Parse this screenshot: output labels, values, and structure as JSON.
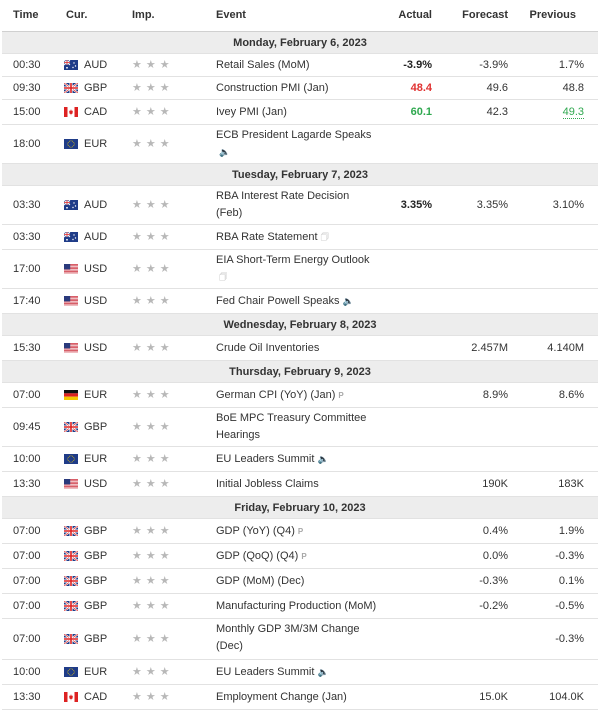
{
  "header": {
    "time": "Time",
    "cur": "Cur.",
    "imp": "Imp.",
    "event": "Event",
    "actual": "Actual",
    "forecast": "Forecast",
    "previous": "Previous"
  },
  "days": [
    {
      "label": "Monday, February 6, 2023"
    },
    {
      "label": "Tuesday, February 7, 2023"
    },
    {
      "label": "Wednesday, February 8, 2023"
    },
    {
      "label": "Thursday, February 9, 2023"
    },
    {
      "label": "Friday, February 10, 2023"
    }
  ],
  "events": [
    {
      "time": "00:30",
      "cur": "AUD",
      "flag": "au",
      "event": "Retail Sales (MoM)",
      "actual": "-3.9%",
      "actual_color": "#222222",
      "forecast": "-3.9%",
      "previous": "1.7%",
      "icon": ""
    },
    {
      "time": "09:30",
      "cur": "GBP",
      "flag": "gb",
      "event": "Construction PMI (Jan)",
      "actual": "48.4",
      "actual_color": "#e03030",
      "forecast": "49.6",
      "previous": "48.8",
      "icon": ""
    },
    {
      "time": "15:00",
      "cur": "CAD",
      "flag": "ca",
      "event": "Ivey PMI (Jan)",
      "actual": "60.1",
      "actual_color": "#2fa84f",
      "forecast": "42.3",
      "previous": "49.3",
      "previous_color": "#2fa84f",
      "icon": ""
    },
    {
      "time": "18:00",
      "cur": "EUR",
      "flag": "eu",
      "event": "ECB President Lagarde Speaks",
      "actual": "",
      "forecast": "",
      "previous": "",
      "icon": "speaker"
    },
    {
      "time": "03:30",
      "cur": "AUD",
      "flag": "au",
      "event": "RBA Interest Rate Decision (Feb)",
      "actual": "3.35%",
      "actual_color": "#222222",
      "forecast": "3.35%",
      "previous": "3.10%",
      "icon": ""
    },
    {
      "time": "03:30",
      "cur": "AUD",
      "flag": "au",
      "event": "RBA Rate Statement",
      "actual": "",
      "forecast": "",
      "previous": "",
      "icon": "doc"
    },
    {
      "time": "17:00",
      "cur": "USD",
      "flag": "us",
      "event": "EIA Short-Term Energy Outlook",
      "actual": "",
      "forecast": "",
      "previous": "",
      "icon": "doc"
    },
    {
      "time": "17:40",
      "cur": "USD",
      "flag": "us",
      "event": "Fed Chair Powell Speaks",
      "actual": "",
      "forecast": "",
      "previous": "",
      "icon": "speaker"
    },
    {
      "time": "15:30",
      "cur": "USD",
      "flag": "us",
      "event": "Crude Oil Inventories",
      "actual": "",
      "forecast": "2.457M",
      "previous": "4.140M",
      "icon": ""
    },
    {
      "time": "07:00",
      "cur": "EUR",
      "flag": "de",
      "event": "German CPI (YoY) (Jan)",
      "actual": "",
      "forecast": "8.9%",
      "previous": "8.6%",
      "icon": "p"
    },
    {
      "time": "09:45",
      "cur": "GBP",
      "flag": "gb",
      "event": "BoE MPC Treasury Committee Hearings",
      "actual": "",
      "forecast": "",
      "previous": "",
      "icon": ""
    },
    {
      "time": "10:00",
      "cur": "EUR",
      "flag": "eu",
      "event": "EU Leaders Summit",
      "actual": "",
      "forecast": "",
      "previous": "",
      "icon": "speaker"
    },
    {
      "time": "13:30",
      "cur": "USD",
      "flag": "us",
      "event": "Initial Jobless Claims",
      "actual": "",
      "forecast": "190K",
      "previous": "183K",
      "icon": ""
    },
    {
      "time": "07:00",
      "cur": "GBP",
      "flag": "gb",
      "event": "GDP (YoY) (Q4)",
      "actual": "",
      "forecast": "0.4%",
      "previous": "1.9%",
      "icon": "p"
    },
    {
      "time": "07:00",
      "cur": "GBP",
      "flag": "gb",
      "event": "GDP (QoQ) (Q4)",
      "actual": "",
      "forecast": "0.0%",
      "previous": "-0.3%",
      "icon": "p"
    },
    {
      "time": "07:00",
      "cur": "GBP",
      "flag": "gb",
      "event": "GDP (MoM) (Dec)",
      "actual": "",
      "forecast": "-0.3%",
      "previous": "0.1%",
      "icon": ""
    },
    {
      "time": "07:00",
      "cur": "GBP",
      "flag": "gb",
      "event": "Manufacturing Production (MoM)",
      "actual": "",
      "forecast": "-0.2%",
      "previous": "-0.5%",
      "icon": ""
    },
    {
      "time": "07:00",
      "cur": "GBP",
      "flag": "gb",
      "event": "Monthly GDP 3M/3M Change (Dec)",
      "actual": "",
      "forecast": "",
      "previous": "-0.3%",
      "icon": ""
    },
    {
      "time": "10:00",
      "cur": "EUR",
      "flag": "eu",
      "event": "EU Leaders Summit",
      "actual": "",
      "forecast": "",
      "previous": "",
      "icon": "speaker"
    },
    {
      "time": "13:30",
      "cur": "CAD",
      "flag": "ca",
      "event": "Employment Change (Jan)",
      "actual": "",
      "forecast": "15.0K",
      "previous": "104.0K",
      "icon": ""
    }
  ],
  "importance_stars": 3,
  "colors": {
    "positive": "#2fa84f",
    "negative": "#e03030",
    "day_bg": "#ededed",
    "star": "#b8b8b8"
  }
}
